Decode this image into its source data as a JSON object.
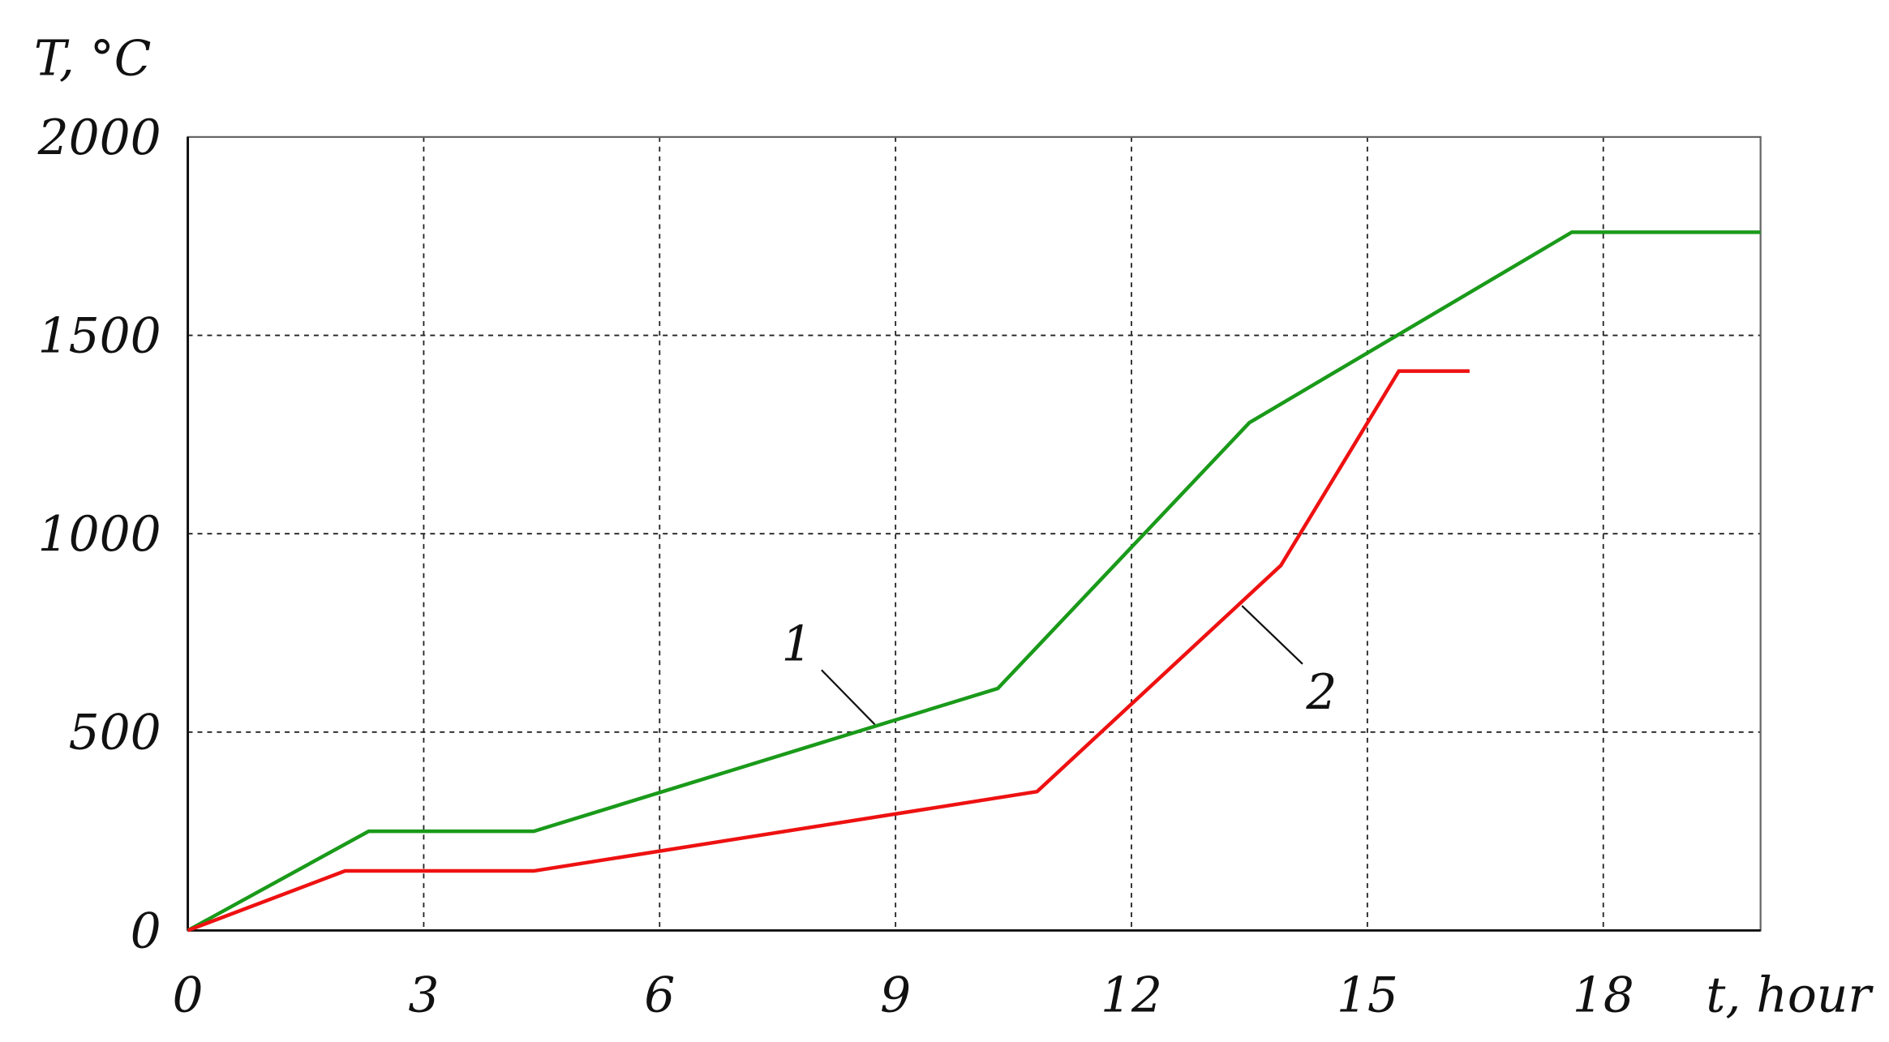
{
  "chart_data": {
    "type": "line",
    "y_label": "T, °C",
    "x_label": "t, hour",
    "series": [
      {
        "name": "1",
        "color": "#1a9a1a",
        "x": [
          0,
          2.3,
          4.4,
          10.3,
          13.5,
          17.6,
          20
        ],
        "values": [
          0,
          250,
          250,
          610,
          1280,
          1760,
          1760
        ]
      },
      {
        "name": "2",
        "color": "#ee1111",
        "x": [
          0,
          2.0,
          4.4,
          10.8,
          13.9,
          15.4,
          16.3
        ],
        "values": [
          0,
          150,
          150,
          350,
          920,
          1410,
          1410
        ]
      }
    ],
    "xlim": [
      0,
      20
    ],
    "xticks": [
      0,
      3,
      6,
      9,
      12,
      15,
      18
    ],
    "ylim": [
      0,
      2000
    ],
    "yticks": [
      0,
      500,
      1000,
      1500,
      2000
    ],
    "grid": true
  }
}
